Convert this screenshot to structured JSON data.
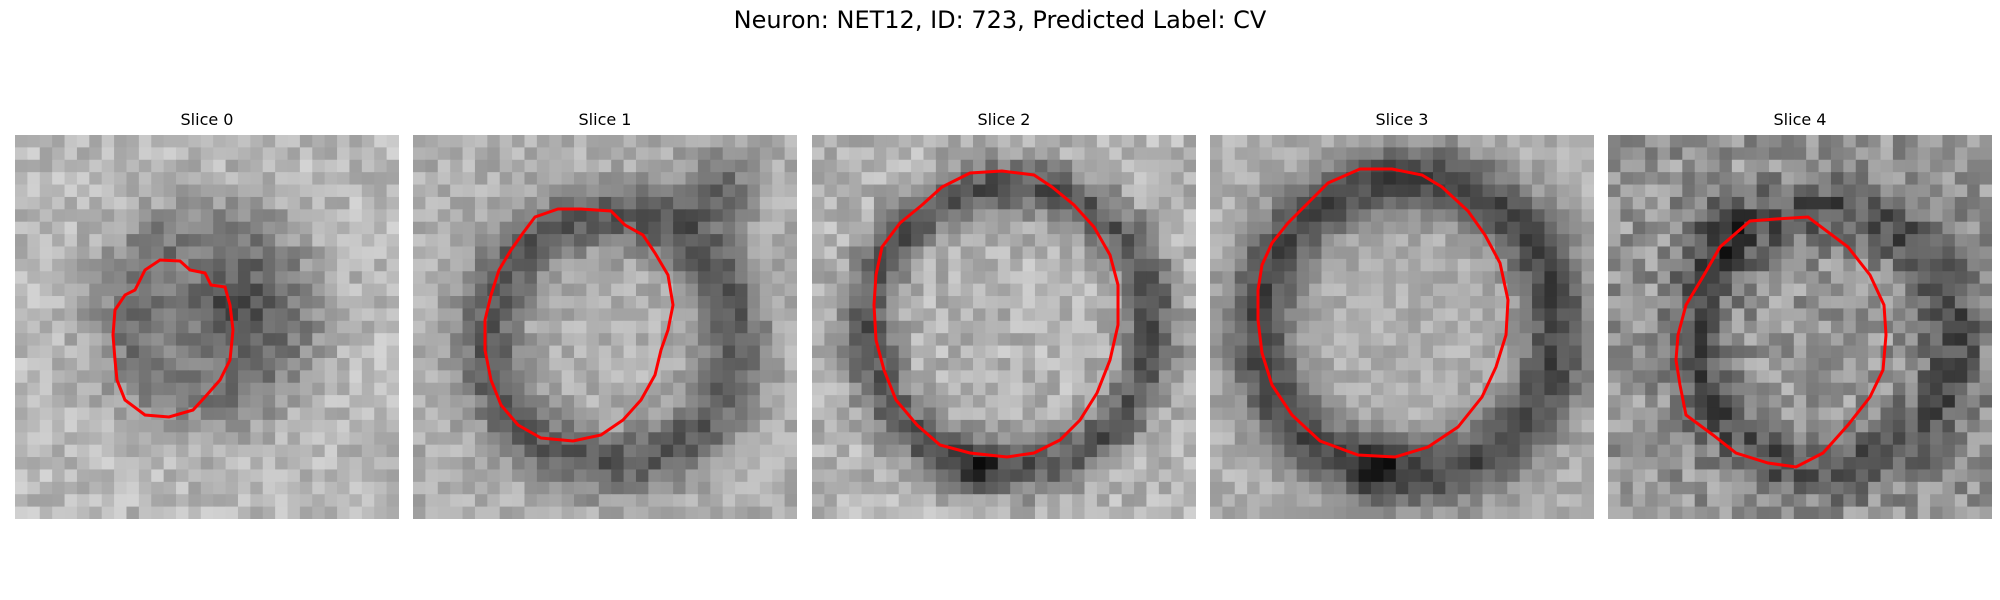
{
  "figure": {
    "title": "Neuron: NET12, ID: 723, Predicted Label: CV"
  },
  "contour_color": "#ff0000",
  "slices": [
    {
      "label": "Slice 0",
      "texture": "blob-dark"
    },
    {
      "label": "Slice 1",
      "texture": "ring-dark-top-right"
    },
    {
      "label": "Slice 2",
      "texture": "ring-dark"
    },
    {
      "label": "Slice 3",
      "texture": "ring-dark-thick"
    },
    {
      "label": "Slice 4",
      "texture": "noisy-ring"
    }
  ]
}
